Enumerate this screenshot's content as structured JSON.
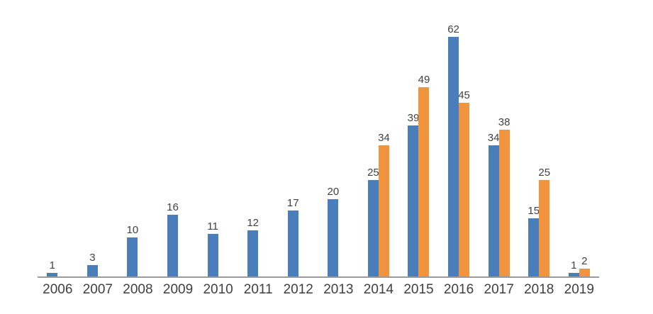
{
  "chart_data": {
    "type": "bar",
    "title": "",
    "categories": [
      "2006",
      "2007",
      "2008",
      "2009",
      "2010",
      "2011",
      "2012",
      "2013",
      "2014",
      "2015",
      "2016",
      "2017",
      "2018",
      "2019"
    ],
    "series": [
      {
        "name": "blue-series",
        "color": "#4A7EBB",
        "values": [
          1,
          3,
          10,
          16,
          11,
          12,
          17,
          20,
          25,
          39,
          62,
          34,
          15,
          1
        ]
      },
      {
        "name": "orange-series",
        "color": "#F0943E",
        "values": [
          null,
          null,
          null,
          null,
          null,
          null,
          null,
          null,
          34,
          49,
          45,
          38,
          25,
          2
        ]
      }
    ],
    "ylim": [
      0,
      70
    ],
    "xlabel": "",
    "ylabel": "",
    "grid": false,
    "legend_position": "none",
    "data_labels": true,
    "axis_line_color": "#9A9A9A",
    "data_label_color": "#404040",
    "tick_label_color": "#3F3F3F"
  }
}
